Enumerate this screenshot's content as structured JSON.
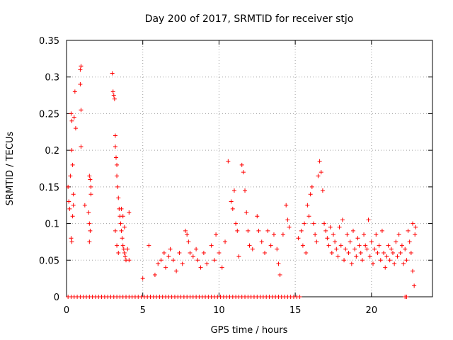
{
  "chart_data": {
    "type": "scatter",
    "title": "Day 200 of 2017, SRMTID for receiver stjo",
    "xlabel": "GPS time / hours",
    "ylabel": "SRMTID / TECUs",
    "xlim": [
      0,
      24
    ],
    "ylim": [
      0,
      0.35
    ],
    "xticks": [
      "0",
      "5",
      "10",
      "15",
      "20"
    ],
    "yticks": [
      "0",
      "0.05",
      "0.1",
      "0.15",
      "0.2",
      "0.25",
      "0.3",
      "0.35"
    ],
    "grid": true,
    "marker": "+",
    "color": "#ff0000",
    "series": [
      {
        "points": [
          [
            0.1,
            0.15
          ],
          [
            0.15,
            0.13
          ],
          [
            0.2,
            0.12
          ],
          [
            0.25,
            0.165
          ],
          [
            0.3,
            0.25
          ],
          [
            0.35,
            0.24
          ],
          [
            0.35,
            0.2
          ],
          [
            0.4,
            0.18
          ],
          [
            0.45,
            0.14
          ],
          [
            0.3,
            0.08
          ],
          [
            0.35,
            0.075
          ],
          [
            0.4,
            0.11
          ],
          [
            0.5,
            0.245
          ],
          [
            0.55,
            0.28
          ],
          [
            0.6,
            0.23
          ],
          [
            0.45,
            0.125
          ],
          [
            0.9,
            0.31
          ],
          [
            0.95,
            0.315
          ],
          [
            0.9,
            0.29
          ],
          [
            0.95,
            0.255
          ],
          [
            0.95,
            0.205
          ],
          [
            1.2,
            0.125
          ],
          [
            1.5,
            0.165
          ],
          [
            1.55,
            0.16
          ],
          [
            1.6,
            0.14
          ],
          [
            1.45,
            0.115
          ],
          [
            1.5,
            0.1
          ],
          [
            1.55,
            0.09
          ],
          [
            1.5,
            0.075
          ],
          [
            1.6,
            0.15
          ],
          [
            3.0,
            0.305
          ],
          [
            3.05,
            0.28
          ],
          [
            3.1,
            0.275
          ],
          [
            3.15,
            0.27
          ],
          [
            3.2,
            0.22
          ],
          [
            3.2,
            0.205
          ],
          [
            3.25,
            0.19
          ],
          [
            3.3,
            0.18
          ],
          [
            3.3,
            0.165
          ],
          [
            3.35,
            0.15
          ],
          [
            3.4,
            0.135
          ],
          [
            3.45,
            0.12
          ],
          [
            3.5,
            0.11
          ],
          [
            3.55,
            0.1
          ],
          [
            3.6,
            0.09
          ],
          [
            3.65,
            0.08
          ],
          [
            3.7,
            0.07
          ],
          [
            3.75,
            0.065
          ],
          [
            3.8,
            0.06
          ],
          [
            3.85,
            0.055
          ],
          [
            3.9,
            0.05
          ],
          [
            3.6,
            0.12
          ],
          [
            3.7,
            0.11
          ],
          [
            3.8,
            0.095
          ],
          [
            4.0,
            0.065
          ],
          [
            4.1,
            0.05
          ],
          [
            4.1,
            0.115
          ],
          [
            3.4,
            0.06
          ],
          [
            3.3,
            0.07
          ],
          [
            3.2,
            0.09
          ],
          [
            5.0,
            0.025
          ],
          [
            5.4,
            0.07
          ],
          [
            5.8,
            0.03
          ],
          [
            6.0,
            0.045
          ],
          [
            6.2,
            0.05
          ],
          [
            6.4,
            0.06
          ],
          [
            6.5,
            0.04
          ],
          [
            6.7,
            0.055
          ],
          [
            6.8,
            0.065
          ],
          [
            7.0,
            0.05
          ],
          [
            7.2,
            0.035
          ],
          [
            7.4,
            0.06
          ],
          [
            7.6,
            0.045
          ],
          [
            7.8,
            0.09
          ],
          [
            7.9,
            0.085
          ],
          [
            8.0,
            0.075
          ],
          [
            8.1,
            0.06
          ],
          [
            8.3,
            0.055
          ],
          [
            8.5,
            0.065
          ],
          [
            8.6,
            0.05
          ],
          [
            8.8,
            0.04
          ],
          [
            9.0,
            0.06
          ],
          [
            9.2,
            0.045
          ],
          [
            9.5,
            0.07
          ],
          [
            9.7,
            0.05
          ],
          [
            9.8,
            0.085
          ],
          [
            10.0,
            0.06
          ],
          [
            10.2,
            0.04
          ],
          [
            10.4,
            0.075
          ],
          [
            10.6,
            0.185
          ],
          [
            10.8,
            0.13
          ],
          [
            10.9,
            0.12
          ],
          [
            11.0,
            0.145
          ],
          [
            11.1,
            0.1
          ],
          [
            11.2,
            0.09
          ],
          [
            11.3,
            0.055
          ],
          [
            11.5,
            0.18
          ],
          [
            11.6,
            0.17
          ],
          [
            11.7,
            0.145
          ],
          [
            11.8,
            0.115
          ],
          [
            11.9,
            0.09
          ],
          [
            12.0,
            0.07
          ],
          [
            12.2,
            0.065
          ],
          [
            12.5,
            0.11
          ],
          [
            12.6,
            0.09
          ],
          [
            12.8,
            0.075
          ],
          [
            13.0,
            0.06
          ],
          [
            13.2,
            0.09
          ],
          [
            13.4,
            0.07
          ],
          [
            13.6,
            0.085
          ],
          [
            13.8,
            0.065
          ],
          [
            13.9,
            0.045
          ],
          [
            14.0,
            0.03
          ],
          [
            14.2,
            0.085
          ],
          [
            14.4,
            0.125
          ],
          [
            14.5,
            0.105
          ],
          [
            14.6,
            0.095
          ],
          [
            15.2,
            0.08
          ],
          [
            15.4,
            0.09
          ],
          [
            15.5,
            0.07
          ],
          [
            15.6,
            0.1
          ],
          [
            15.7,
            0.06
          ],
          [
            15.8,
            0.125
          ],
          [
            15.9,
            0.11
          ],
          [
            16.0,
            0.14
          ],
          [
            16.1,
            0.15
          ],
          [
            16.2,
            0.1
          ],
          [
            16.3,
            0.085
          ],
          [
            16.4,
            0.075
          ],
          [
            16.5,
            0.165
          ],
          [
            16.6,
            0.185
          ],
          [
            16.7,
            0.17
          ],
          [
            16.8,
            0.145
          ],
          [
            16.9,
            0.1
          ],
          [
            17.0,
            0.09
          ],
          [
            17.1,
            0.08
          ],
          [
            17.2,
            0.07
          ],
          [
            17.3,
            0.095
          ],
          [
            17.4,
            0.06
          ],
          [
            17.5,
            0.085
          ],
          [
            17.6,
            0.075
          ],
          [
            17.7,
            0.065
          ],
          [
            17.8,
            0.055
          ],
          [
            17.9,
            0.095
          ],
          [
            18.0,
            0.07
          ],
          [
            18.1,
            0.105
          ],
          [
            18.2,
            0.05
          ],
          [
            18.3,
            0.065
          ],
          [
            18.4,
            0.085
          ],
          [
            18.5,
            0.06
          ],
          [
            18.6,
            0.075
          ],
          [
            18.7,
            0.045
          ],
          [
            18.8,
            0.09
          ],
          [
            18.9,
            0.065
          ],
          [
            19.0,
            0.055
          ],
          [
            19.1,
            0.08
          ],
          [
            19.2,
            0.07
          ],
          [
            19.3,
            0.06
          ],
          [
            19.4,
            0.05
          ],
          [
            19.5,
            0.085
          ],
          [
            19.6,
            0.07
          ],
          [
            19.7,
            0.065
          ],
          [
            19.8,
            0.105
          ],
          [
            19.9,
            0.055
          ],
          [
            20.0,
            0.075
          ],
          [
            20.1,
            0.045
          ],
          [
            20.2,
            0.065
          ],
          [
            20.3,
            0.085
          ],
          [
            20.4,
            0.06
          ],
          [
            20.5,
            0.07
          ],
          [
            20.6,
            0.05
          ],
          [
            20.7,
            0.09
          ],
          [
            20.8,
            0.06
          ],
          [
            20.9,
            0.04
          ],
          [
            21.0,
            0.055
          ],
          [
            21.1,
            0.07
          ],
          [
            21.2,
            0.05
          ],
          [
            21.3,
            0.065
          ],
          [
            21.4,
            0.06
          ],
          [
            21.5,
            0.045
          ],
          [
            21.6,
            0.075
          ],
          [
            21.7,
            0.055
          ],
          [
            21.8,
            0.085
          ],
          [
            21.9,
            0.06
          ],
          [
            22.0,
            0.07
          ],
          [
            22.1,
            0.045
          ],
          [
            22.2,
            0.065
          ],
          [
            22.3,
            0.05
          ],
          [
            22.4,
            0.09
          ],
          [
            22.5,
            0.075
          ],
          [
            22.6,
            0.06
          ],
          [
            22.7,
            0.035
          ],
          [
            22.8,
            0.015
          ],
          [
            22.85,
            0.085
          ],
          [
            22.9,
            0.095
          ],
          [
            22.7,
            0.1
          ]
        ]
      }
    ],
    "zero_points_x": [
      0.1,
      0.3,
      0.5,
      0.7,
      0.9,
      1.1,
      1.3,
      1.5,
      1.7,
      1.9,
      2.1,
      2.3,
      2.5,
      2.7,
      2.9,
      3.1,
      3.3,
      3.5,
      3.7,
      3.9,
      4.1,
      4.3,
      4.5,
      4.7,
      4.9,
      5.1,
      5.3,
      5.5,
      5.7,
      5.9,
      6.1,
      6.3,
      6.5,
      6.7,
      6.9,
      7.1,
      7.3,
      7.5,
      7.7,
      7.9,
      8.1,
      8.3,
      8.5,
      8.7,
      8.9,
      9.1,
      9.3,
      9.5,
      9.7,
      9.9,
      10.1,
      10.3,
      10.5,
      10.7,
      10.9,
      11.1,
      11.3,
      11.5,
      11.7,
      11.9,
      12.1,
      12.3,
      12.5,
      12.7,
      12.9,
      13.1,
      13.3,
      13.5,
      13.7,
      13.9,
      14.1,
      14.3,
      14.5,
      14.7,
      14.9,
      15.1,
      15.3,
      22.2,
      22.3
    ]
  }
}
